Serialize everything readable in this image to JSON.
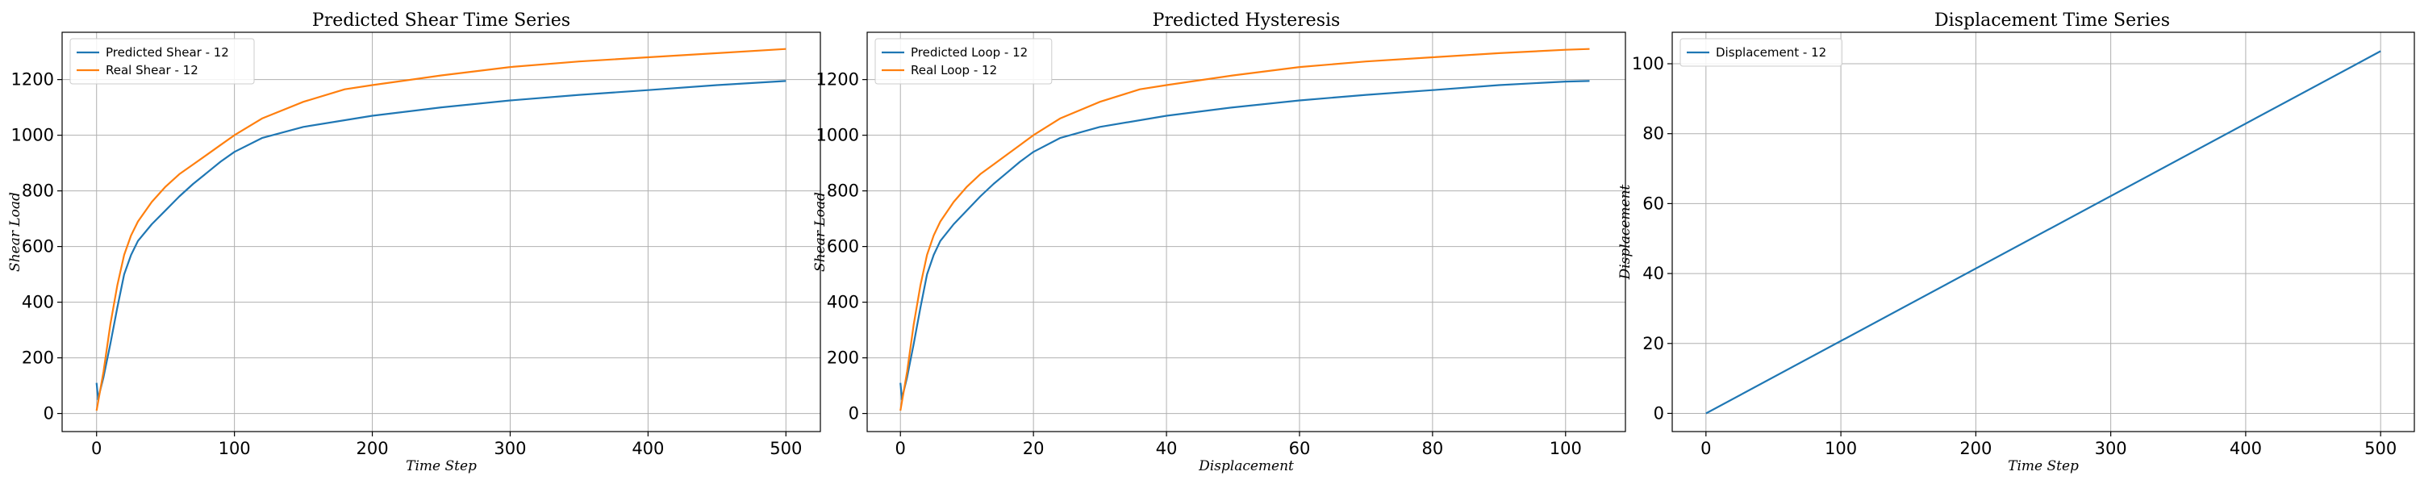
{
  "chart_data": [
    {
      "type": "line",
      "title": "Predicted Shear Time Series",
      "xlabel": "Time Step",
      "ylabel": "Shear Load",
      "xlim": [
        -25,
        525
      ],
      "ylim": [
        -65,
        1370
      ],
      "xticks": [
        0,
        100,
        200,
        300,
        400,
        500
      ],
      "yticks": [
        0,
        200,
        400,
        600,
        800,
        1000,
        1200
      ],
      "grid": true,
      "legend": "top-left",
      "series": [
        {
          "name": "Predicted Shear - 12",
          "color": "#1f77b4",
          "x": [
            0,
            1,
            1,
            2,
            5,
            10,
            15,
            20,
            25,
            30,
            40,
            50,
            60,
            70,
            80,
            90,
            100,
            120,
            150,
            200,
            250,
            300,
            350,
            400,
            450,
            500
          ],
          "y": [
            110,
            60,
            50,
            70,
            130,
            250,
            380,
            500,
            570,
            620,
            680,
            730,
            780,
            825,
            865,
            905,
            940,
            990,
            1030,
            1070,
            1100,
            1125,
            1145,
            1162,
            1180,
            1195
          ]
        },
        {
          "name": "Real Shear - 12",
          "color": "#ff7f0e",
          "x": [
            0,
            5,
            10,
            15,
            20,
            25,
            30,
            40,
            50,
            60,
            70,
            80,
            90,
            100,
            120,
            150,
            180,
            200,
            250,
            300,
            350,
            400,
            450,
            500
          ],
          "y": [
            10,
            150,
            320,
            460,
            570,
            640,
            690,
            760,
            815,
            860,
            895,
            930,
            965,
            1000,
            1060,
            1120,
            1165,
            1180,
            1215,
            1245,
            1265,
            1280,
            1295,
            1310
          ]
        }
      ]
    },
    {
      "type": "line",
      "title": "Predicted Hysteresis",
      "xlabel": "Displacement",
      "ylabel": "Shear Load",
      "xlim": [
        -5,
        109
      ],
      "ylim": [
        -65,
        1370
      ],
      "xticks": [
        0,
        20,
        40,
        60,
        80,
        100
      ],
      "yticks": [
        0,
        200,
        400,
        600,
        800,
        1000,
        1200
      ],
      "grid": true,
      "legend": "top-left",
      "series": [
        {
          "name": "Predicted Loop - 12",
          "color": "#1f77b4",
          "x": [
            0,
            0.2,
            0.2,
            0.4,
            1,
            2,
            3,
            4,
            5,
            6,
            8,
            10,
            12,
            14,
            16,
            18,
            20,
            24,
            30,
            40,
            50,
            60,
            70,
            80,
            90,
            100,
            103.6
          ],
          "y": [
            110,
            60,
            50,
            70,
            130,
            250,
            380,
            500,
            570,
            620,
            680,
            730,
            780,
            825,
            865,
            905,
            940,
            990,
            1030,
            1070,
            1100,
            1125,
            1145,
            1162,
            1180,
            1193,
            1195
          ]
        },
        {
          "name": "Real Loop - 12",
          "color": "#ff7f0e",
          "x": [
            0,
            1,
            2,
            3,
            4,
            5,
            6,
            8,
            10,
            12,
            14,
            16,
            18,
            20,
            24,
            30,
            36,
            40,
            50,
            60,
            70,
            80,
            90,
            100,
            103.6
          ],
          "y": [
            10,
            150,
            320,
            460,
            570,
            640,
            690,
            760,
            815,
            860,
            895,
            930,
            965,
            1000,
            1060,
            1120,
            1165,
            1180,
            1215,
            1245,
            1265,
            1280,
            1295,
            1307,
            1310
          ]
        }
      ]
    },
    {
      "type": "line",
      "title": "Displacement Time Series",
      "xlabel": "Time Step",
      "ylabel": "Displacement",
      "xlim": [
        -25,
        525
      ],
      "ylim": [
        -5.2,
        109
      ],
      "xticks": [
        0,
        100,
        200,
        300,
        400,
        500
      ],
      "yticks": [
        0,
        20,
        40,
        60,
        80,
        100
      ],
      "grid": true,
      "legend": "top-left",
      "series": [
        {
          "name": "Displacement - 12",
          "color": "#1f77b4",
          "x": [
            0,
            500
          ],
          "y": [
            0,
            103.6
          ]
        }
      ]
    }
  ]
}
